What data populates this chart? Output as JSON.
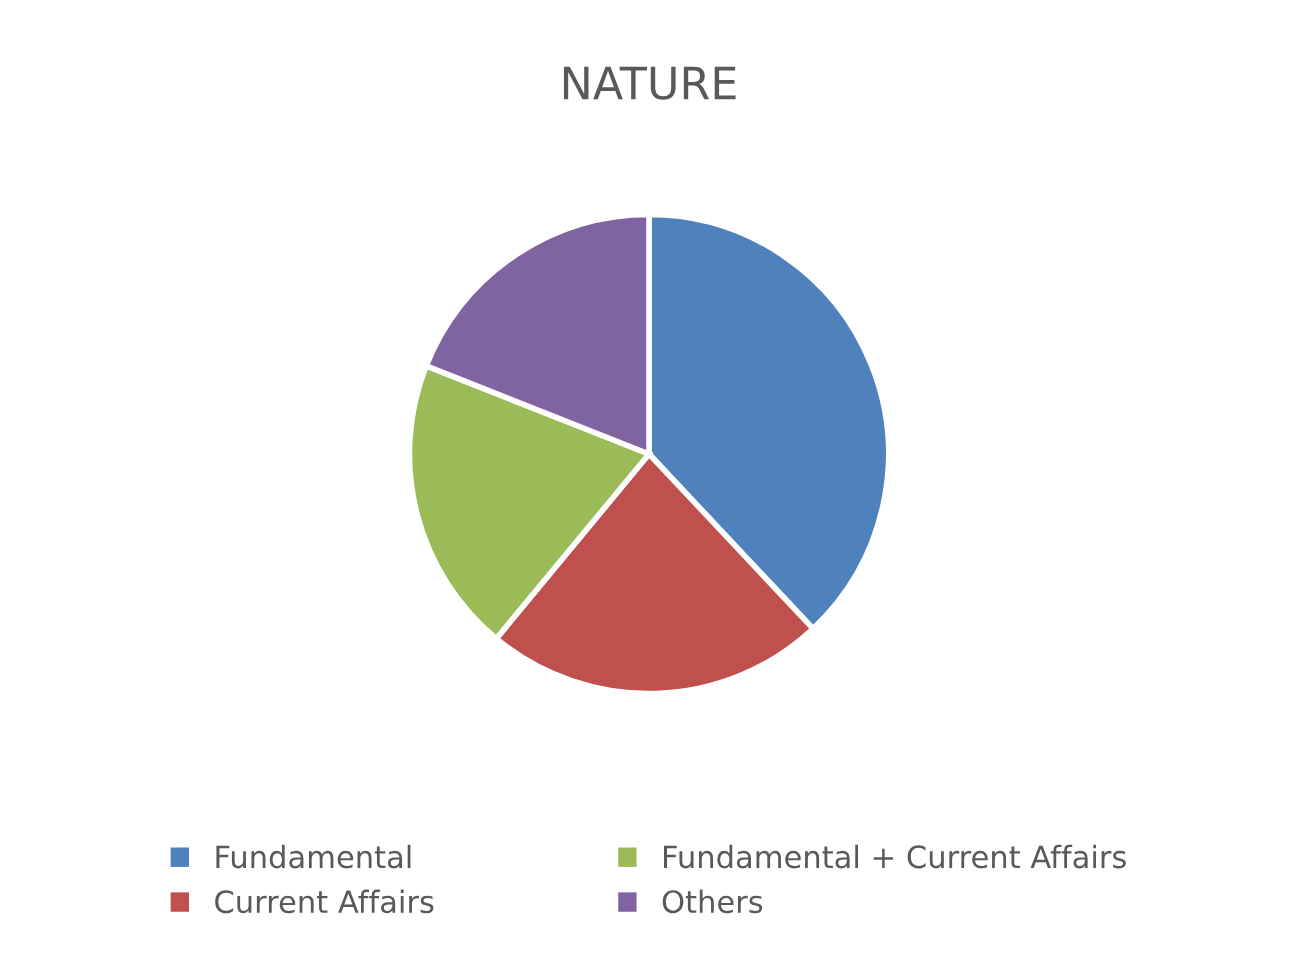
{
  "chart_data": {
    "type": "pie",
    "title": "NATURE",
    "categories": [
      "Fundamental",
      "Current Affairs",
      "Fundamental + Current Affairs",
      "Others"
    ],
    "values": [
      38,
      23,
      20,
      19
    ],
    "colors": [
      "#4f81bd",
      "#c0504d",
      "#9bbb59",
      "#8064a2"
    ],
    "legend": "bottom"
  }
}
